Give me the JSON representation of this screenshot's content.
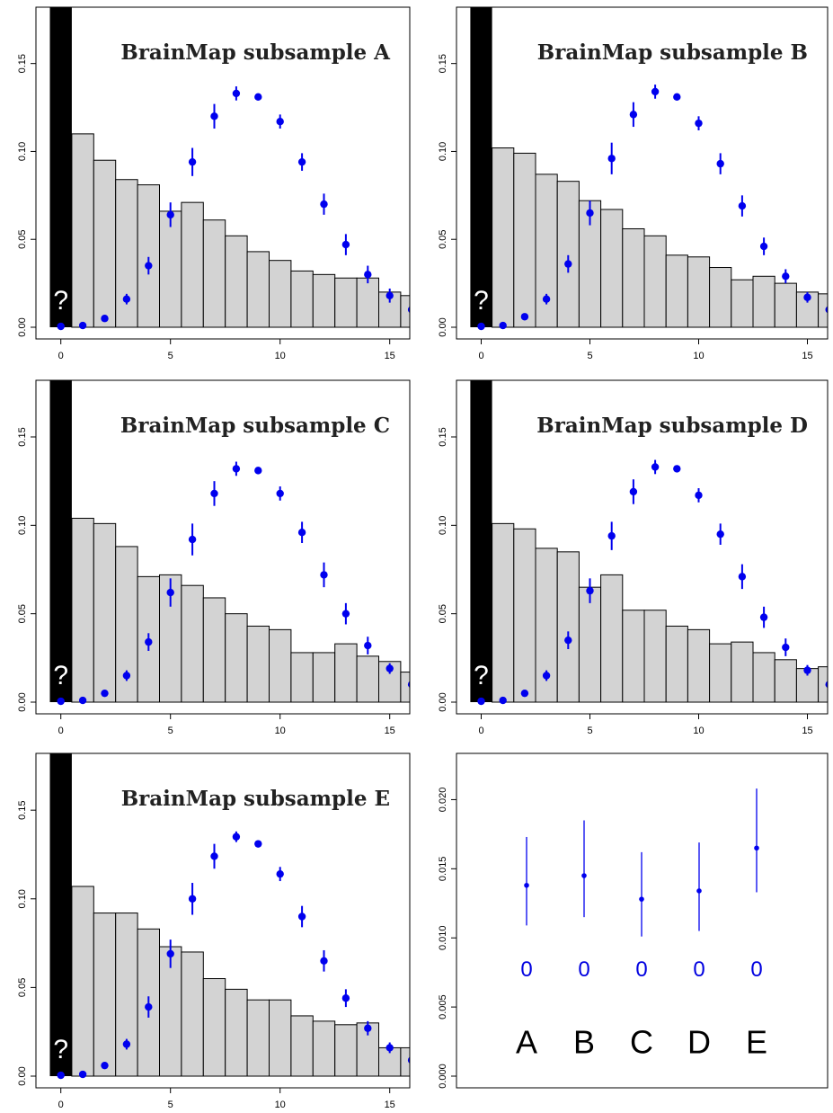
{
  "colors": {
    "bar_fill": "#d3d3d3",
    "bar_stroke": "#000000",
    "zero_bar": "#000000",
    "point": "#0000ee",
    "question_mark": "#ffffff"
  },
  "chart_data": [
    {
      "type": "bar",
      "title": "BrainMap subsample A",
      "zero_bar_label": "?",
      "xlim": [
        -1,
        16
      ],
      "ylim": [
        0,
        0.18
      ],
      "xticks": [
        0,
        5,
        10,
        15
      ],
      "yticks": [
        0.0,
        0.05,
        0.1,
        0.15
      ],
      "yticklabels": [
        "0.00",
        "0.05",
        "0.10",
        "0.15"
      ],
      "bars": {
        "x": [
          1,
          2,
          3,
          4,
          5,
          6,
          7,
          8,
          9,
          10,
          11,
          12,
          13,
          14,
          15,
          16
        ],
        "values": [
          0.11,
          0.095,
          0.084,
          0.081,
          0.066,
          0.071,
          0.061,
          0.052,
          0.043,
          0.038,
          0.032,
          0.03,
          0.028,
          0.028,
          0.02,
          0.018
        ]
      },
      "points": {
        "x": [
          0,
          1,
          2,
          3,
          4,
          5,
          6,
          7,
          8,
          9,
          10,
          11,
          12,
          13,
          14,
          15,
          16
        ],
        "y": [
          0.0005,
          0.001,
          0.005,
          0.016,
          0.035,
          0.064,
          0.094,
          0.12,
          0.133,
          0.131,
          0.117,
          0.094,
          0.07,
          0.047,
          0.03,
          0.018,
          0.01
        ],
        "err": [
          0,
          0,
          0,
          0.003,
          0.005,
          0.007,
          0.008,
          0.007,
          0.004,
          0.002,
          0.004,
          0.005,
          0.006,
          0.006,
          0.005,
          0.004,
          0.003
        ]
      }
    },
    {
      "type": "bar",
      "title": "BrainMap subsample B",
      "zero_bar_label": "?",
      "xlim": [
        -1,
        16
      ],
      "ylim": [
        0,
        0.18
      ],
      "xticks": [
        0,
        5,
        10,
        15
      ],
      "yticks": [
        0.0,
        0.05,
        0.1,
        0.15
      ],
      "yticklabels": [
        "0.00",
        "0.05",
        "0.10",
        "0.15"
      ],
      "bars": {
        "x": [
          1,
          2,
          3,
          4,
          5,
          6,
          7,
          8,
          9,
          10,
          11,
          12,
          13,
          14,
          15,
          16
        ],
        "values": [
          0.102,
          0.099,
          0.087,
          0.083,
          0.072,
          0.067,
          0.056,
          0.052,
          0.041,
          0.04,
          0.034,
          0.027,
          0.029,
          0.025,
          0.02,
          0.019
        ]
      },
      "points": {
        "x": [
          0,
          1,
          2,
          3,
          4,
          5,
          6,
          7,
          8,
          9,
          10,
          11,
          12,
          13,
          14,
          15,
          16
        ],
        "y": [
          0.0005,
          0.001,
          0.006,
          0.016,
          0.036,
          0.065,
          0.096,
          0.121,
          0.134,
          0.131,
          0.116,
          0.093,
          0.069,
          0.046,
          0.029,
          0.017,
          0.01
        ],
        "err": [
          0,
          0,
          0,
          0.003,
          0.005,
          0.007,
          0.009,
          0.007,
          0.004,
          0.002,
          0.004,
          0.006,
          0.006,
          0.005,
          0.004,
          0.003,
          0.002
        ]
      }
    },
    {
      "type": "bar",
      "title": "BrainMap subsample C",
      "zero_bar_label": "?",
      "xlim": [
        -1,
        16
      ],
      "ylim": [
        0,
        0.18
      ],
      "xticks": [
        0,
        5,
        10,
        15
      ],
      "yticks": [
        0.0,
        0.05,
        0.1,
        0.15
      ],
      "yticklabels": [
        "0.00",
        "0.05",
        "0.10",
        "0.15"
      ],
      "bars": {
        "x": [
          1,
          2,
          3,
          4,
          5,
          6,
          7,
          8,
          9,
          10,
          11,
          12,
          13,
          14,
          15,
          16
        ],
        "values": [
          0.104,
          0.101,
          0.088,
          0.071,
          0.072,
          0.066,
          0.059,
          0.05,
          0.043,
          0.041,
          0.028,
          0.028,
          0.033,
          0.026,
          0.023,
          0.017
        ]
      },
      "points": {
        "x": [
          0,
          1,
          2,
          3,
          4,
          5,
          6,
          7,
          8,
          9,
          10,
          11,
          12,
          13,
          14,
          15,
          16
        ],
        "y": [
          0.0005,
          0.001,
          0.005,
          0.015,
          0.034,
          0.062,
          0.092,
          0.118,
          0.132,
          0.131,
          0.118,
          0.096,
          0.072,
          0.05,
          0.032,
          0.019,
          0.01
        ],
        "err": [
          0,
          0,
          0,
          0.003,
          0.005,
          0.008,
          0.009,
          0.007,
          0.004,
          0.002,
          0.004,
          0.006,
          0.007,
          0.006,
          0.005,
          0.003,
          0.002
        ]
      }
    },
    {
      "type": "bar",
      "title": "BrainMap subsample D",
      "zero_bar_label": "?",
      "xlim": [
        -1,
        16
      ],
      "ylim": [
        0,
        0.18
      ],
      "xticks": [
        0,
        5,
        10,
        15
      ],
      "yticks": [
        0.0,
        0.05,
        0.1,
        0.15
      ],
      "yticklabels": [
        "0.00",
        "0.05",
        "0.10",
        "0.15"
      ],
      "bars": {
        "x": [
          1,
          2,
          3,
          4,
          5,
          6,
          7,
          8,
          9,
          10,
          11,
          12,
          13,
          14,
          15,
          16
        ],
        "values": [
          0.101,
          0.098,
          0.087,
          0.085,
          0.065,
          0.072,
          0.052,
          0.052,
          0.043,
          0.041,
          0.033,
          0.034,
          0.028,
          0.024,
          0.019,
          0.02
        ]
      },
      "points": {
        "x": [
          0,
          1,
          2,
          3,
          4,
          5,
          6,
          7,
          8,
          9,
          10,
          11,
          12,
          13,
          14,
          15,
          16
        ],
        "y": [
          0.0005,
          0.001,
          0.005,
          0.015,
          0.035,
          0.063,
          0.094,
          0.119,
          0.133,
          0.132,
          0.117,
          0.095,
          0.071,
          0.048,
          0.031,
          0.018,
          0.01
        ],
        "err": [
          0,
          0,
          0,
          0.003,
          0.005,
          0.007,
          0.008,
          0.007,
          0.004,
          0.002,
          0.004,
          0.006,
          0.007,
          0.006,
          0.005,
          0.003,
          0.002
        ]
      }
    },
    {
      "type": "bar",
      "title": "BrainMap subsample E",
      "zero_bar_label": "?",
      "xlim": [
        -1,
        16
      ],
      "ylim": [
        0,
        0.18
      ],
      "xticks": [
        0,
        5,
        10,
        15
      ],
      "yticks": [
        0.0,
        0.05,
        0.1,
        0.15
      ],
      "yticklabels": [
        "0.00",
        "0.05",
        "0.10",
        "0.15"
      ],
      "bars": {
        "x": [
          1,
          2,
          3,
          4,
          5,
          6,
          7,
          8,
          9,
          10,
          11,
          12,
          13,
          14,
          15,
          16
        ],
        "values": [
          0.107,
          0.092,
          0.092,
          0.083,
          0.073,
          0.07,
          0.055,
          0.049,
          0.043,
          0.043,
          0.034,
          0.031,
          0.029,
          0.03,
          0.016,
          0.016
        ]
      },
      "points": {
        "x": [
          0,
          1,
          2,
          3,
          4,
          5,
          6,
          7,
          8,
          9,
          10,
          11,
          12,
          13,
          14,
          15,
          16
        ],
        "y": [
          0.0005,
          0.001,
          0.006,
          0.018,
          0.039,
          0.069,
          0.1,
          0.124,
          0.135,
          0.131,
          0.114,
          0.09,
          0.065,
          0.044,
          0.027,
          0.016,
          0.009
        ],
        "err": [
          0,
          0,
          0,
          0.003,
          0.006,
          0.008,
          0.009,
          0.007,
          0.003,
          0.002,
          0.004,
          0.006,
          0.006,
          0.005,
          0.004,
          0.003,
          0.002
        ]
      }
    },
    {
      "type": "scatter",
      "xlim": [
        0.5,
        5.5
      ],
      "ylim": [
        0,
        0.0225
      ],
      "yticks": [
        0.0,
        0.005,
        0.01,
        0.015,
        0.02
      ],
      "yticklabels": [
        "0.000",
        "0.005",
        "0.010",
        "0.015",
        "0.020"
      ],
      "categories": [
        "A",
        "B",
        "C",
        "D",
        "E"
      ],
      "y": [
        0.0138,
        0.0145,
        0.0128,
        0.0134,
        0.0165
      ],
      "lower": [
        0.0109,
        0.0115,
        0.0101,
        0.0105,
        0.0133
      ],
      "upper": [
        0.0173,
        0.0185,
        0.0162,
        0.0169,
        0.0208
      ],
      "value_labels": [
        "0",
        "0",
        "0",
        "0",
        "0"
      ],
      "value_label_y": 0.0078,
      "category_label_y": 0.0025
    }
  ]
}
